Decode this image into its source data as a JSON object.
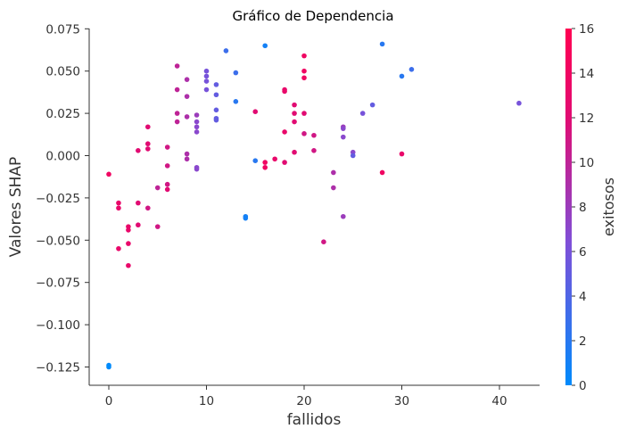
{
  "chart_data": {
    "type": "scatter",
    "title": "Gráfico de Dependencia",
    "xlabel": "fallidos",
    "ylabel": "Valores SHAP",
    "xlim": [
      -2,
      44
    ],
    "ylim": [
      -0.134,
      0.075
    ],
    "x_ticks": [
      0,
      10,
      20,
      30,
      40
    ],
    "y_ticks": [
      0.075,
      0.05,
      0.025,
      0.0,
      -0.025,
      -0.05,
      -0.075,
      -0.1,
      -0.125
    ],
    "y_tick_labels": [
      "0.075",
      "0.050",
      "0.025",
      "0.000",
      "−0.025",
      "−0.050",
      "−0.075",
      "−0.100",
      "−0.125"
    ],
    "colorbar": {
      "label": "exitosos",
      "range": [
        0,
        16
      ],
      "ticks": [
        0,
        2,
        4,
        6,
        8,
        10,
        12,
        14,
        16
      ],
      "colors": [
        "#008afb",
        "#7f4fd8",
        "#e10b72",
        "#ff0052"
      ]
    },
    "points": [
      {
        "x": 0,
        "y": -0.011,
        "c": 14
      },
      {
        "x": 0,
        "y": -0.124,
        "c": 0
      },
      {
        "x": 0,
        "y": -0.125,
        "c": 0
      },
      {
        "x": 1,
        "y": -0.028,
        "c": 13
      },
      {
        "x": 1,
        "y": -0.031,
        "c": 13
      },
      {
        "x": 1,
        "y": -0.055,
        "c": 13
      },
      {
        "x": 2,
        "y": -0.042,
        "c": 13
      },
      {
        "x": 2,
        "y": -0.044,
        "c": 13
      },
      {
        "x": 2,
        "y": -0.052,
        "c": 13
      },
      {
        "x": 2,
        "y": -0.065,
        "c": 13
      },
      {
        "x": 3,
        "y": 0.003,
        "c": 12
      },
      {
        "x": 3,
        "y": -0.028,
        "c": 12
      },
      {
        "x": 3,
        "y": -0.041,
        "c": 12
      },
      {
        "x": 4,
        "y": 0.017,
        "c": 12
      },
      {
        "x": 4,
        "y": 0.007,
        "c": 12
      },
      {
        "x": 4,
        "y": 0.004,
        "c": 12
      },
      {
        "x": 4,
        "y": -0.031,
        "c": 11
      },
      {
        "x": 5,
        "y": -0.019,
        "c": 10
      },
      {
        "x": 5,
        "y": -0.042,
        "c": 11
      },
      {
        "x": 6,
        "y": 0.005,
        "c": 11
      },
      {
        "x": 6,
        "y": -0.006,
        "c": 11
      },
      {
        "x": 6,
        "y": -0.017,
        "c": 11
      },
      {
        "x": 6,
        "y": -0.02,
        "c": 12
      },
      {
        "x": 7,
        "y": 0.053,
        "c": 10
      },
      {
        "x": 7,
        "y": 0.039,
        "c": 10
      },
      {
        "x": 7,
        "y": 0.025,
        "c": 10
      },
      {
        "x": 7,
        "y": 0.02,
        "c": 10
      },
      {
        "x": 8,
        "y": 0.045,
        "c": 9
      },
      {
        "x": 8,
        "y": 0.035,
        "c": 9
      },
      {
        "x": 8,
        "y": 0.023,
        "c": 9
      },
      {
        "x": 8,
        "y": 0.001,
        "c": 9
      },
      {
        "x": 8,
        "y": -0.002,
        "c": 9
      },
      {
        "x": 9,
        "y": 0.024,
        "c": 8
      },
      {
        "x": 9,
        "y": 0.02,
        "c": 7
      },
      {
        "x": 9,
        "y": 0.017,
        "c": 7
      },
      {
        "x": 9,
        "y": 0.014,
        "c": 7
      },
      {
        "x": 9,
        "y": -0.007,
        "c": 7
      },
      {
        "x": 9,
        "y": -0.008,
        "c": 7
      },
      {
        "x": 10,
        "y": 0.05,
        "c": 6
      },
      {
        "x": 10,
        "y": 0.047,
        "c": 6
      },
      {
        "x": 10,
        "y": 0.044,
        "c": 6
      },
      {
        "x": 10,
        "y": 0.039,
        "c": 6
      },
      {
        "x": 11,
        "y": 0.042,
        "c": 5
      },
      {
        "x": 11,
        "y": 0.036,
        "c": 5
      },
      {
        "x": 11,
        "y": 0.027,
        "c": 5
      },
      {
        "x": 11,
        "y": 0.022,
        "c": 5
      },
      {
        "x": 11,
        "y": 0.021,
        "c": 5
      },
      {
        "x": 12,
        "y": 0.062,
        "c": 3
      },
      {
        "x": 13,
        "y": 0.049,
        "c": 3
      },
      {
        "x": 13,
        "y": 0.032,
        "c": 2
      },
      {
        "x": 14,
        "y": -0.036,
        "c": 1
      },
      {
        "x": 14,
        "y": -0.037,
        "c": 1
      },
      {
        "x": 15,
        "y": 0.026,
        "c": 12
      },
      {
        "x": 15,
        "y": -0.003,
        "c": 2
      },
      {
        "x": 16,
        "y": 0.065,
        "c": 1
      },
      {
        "x": 16,
        "y": -0.004,
        "c": 14
      },
      {
        "x": 16,
        "y": -0.007,
        "c": 14
      },
      {
        "x": 17,
        "y": -0.002,
        "c": 13
      },
      {
        "x": 18,
        "y": 0.039,
        "c": 13
      },
      {
        "x": 18,
        "y": 0.038,
        "c": 13
      },
      {
        "x": 18,
        "y": 0.014,
        "c": 13
      },
      {
        "x": 18,
        "y": -0.004,
        "c": 12
      },
      {
        "x": 19,
        "y": 0.03,
        "c": 12
      },
      {
        "x": 19,
        "y": 0.025,
        "c": 12
      },
      {
        "x": 19,
        "y": 0.02,
        "c": 12
      },
      {
        "x": 19,
        "y": 0.002,
        "c": 12
      },
      {
        "x": 20,
        "y": 0.059,
        "c": 14
      },
      {
        "x": 20,
        "y": 0.05,
        "c": 14
      },
      {
        "x": 20,
        "y": 0.046,
        "c": 14
      },
      {
        "x": 20,
        "y": 0.025,
        "c": 12
      },
      {
        "x": 20,
        "y": 0.013,
        "c": 11
      },
      {
        "x": 21,
        "y": 0.012,
        "c": 11
      },
      {
        "x": 21,
        "y": 0.003,
        "c": 11
      },
      {
        "x": 22,
        "y": -0.051,
        "c": 11
      },
      {
        "x": 23,
        "y": -0.01,
        "c": 9
      },
      {
        "x": 23,
        "y": -0.019,
        "c": 9
      },
      {
        "x": 24,
        "y": 0.017,
        "c": 8
      },
      {
        "x": 24,
        "y": 0.016,
        "c": 7
      },
      {
        "x": 24,
        "y": 0.011,
        "c": 7
      },
      {
        "x": 24,
        "y": -0.036,
        "c": 8
      },
      {
        "x": 25,
        "y": 0.002,
        "c": 7
      },
      {
        "x": 25,
        "y": 0.0,
        "c": 5
      },
      {
        "x": 26,
        "y": 0.025,
        "c": 6
      },
      {
        "x": 27,
        "y": 0.03,
        "c": 5
      },
      {
        "x": 28,
        "y": 0.066,
        "c": 2
      },
      {
        "x": 28,
        "y": -0.01,
        "c": 14
      },
      {
        "x": 30,
        "y": 0.047,
        "c": 2
      },
      {
        "x": 30,
        "y": 0.001,
        "c": 13
      },
      {
        "x": 31,
        "y": 0.051,
        "c": 3
      },
      {
        "x": 42,
        "y": 0.031,
        "c": 6
      }
    ]
  }
}
